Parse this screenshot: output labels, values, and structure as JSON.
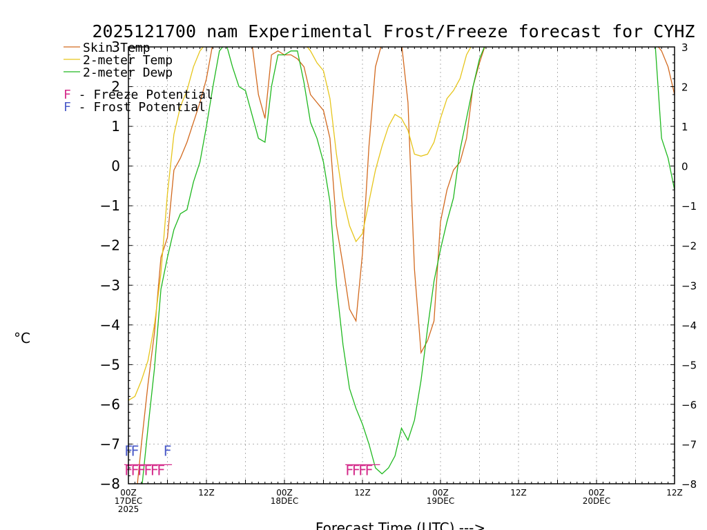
{
  "chart_data": {
    "type": "line",
    "title": "2025121700 nam Experimental Frost/Freeze forecast for CYHZ",
    "xlabel": "Forecast Time (UTC) --->",
    "ylabel": "°C",
    "ylim": [
      -8,
      3
    ],
    "xlim": [
      0,
      84
    ],
    "yticks": [
      -8,
      -7,
      -6,
      -5,
      -4,
      -3,
      -2,
      -1,
      0,
      1,
      2,
      3
    ],
    "xticks": [
      {
        "x": 0,
        "lines": [
          "00Z",
          "17DEC",
          "2025"
        ]
      },
      {
        "x": 12,
        "lines": [
          "12Z"
        ]
      },
      {
        "x": 24,
        "lines": [
          "00Z",
          "18DEC"
        ]
      },
      {
        "x": 36,
        "lines": [
          "12Z"
        ]
      },
      {
        "x": 48,
        "lines": [
          "00Z",
          "19DEC"
        ]
      },
      {
        "x": 60,
        "lines": [
          "12Z"
        ]
      },
      {
        "x": 72,
        "lines": [
          "00Z",
          "20DEC"
        ]
      },
      {
        "x": 84,
        "lines": [
          "12Z"
        ]
      }
    ],
    "grid": true,
    "series": [
      {
        "name": "Skin Temp",
        "color": "#d2691e",
        "points": [
          [
            1.2,
            -8.3
          ],
          [
            2,
            -7.0
          ],
          [
            3,
            -5.5
          ],
          [
            4,
            -4.2
          ],
          [
            5,
            -2.3
          ],
          [
            6,
            -1.8
          ],
          [
            7,
            -0.1
          ],
          [
            8,
            0.2
          ],
          [
            9,
            0.6
          ],
          [
            10,
            1.1
          ],
          [
            11,
            1.6
          ],
          [
            12,
            2.2
          ],
          [
            13,
            3.1
          ],
          [
            19,
            3.1
          ],
          [
            20,
            1.8
          ],
          [
            21,
            1.2
          ],
          [
            22,
            2.8
          ],
          [
            23,
            2.9
          ],
          [
            24,
            2.8
          ],
          [
            25,
            2.8
          ],
          [
            26,
            2.7
          ],
          [
            27,
            2.5
          ],
          [
            28,
            1.8
          ],
          [
            29,
            1.6
          ],
          [
            30,
            1.4
          ],
          [
            31,
            0.7
          ],
          [
            32,
            -1.5
          ],
          [
            33,
            -2.5
          ],
          [
            34,
            -3.6
          ],
          [
            35,
            -3.9
          ],
          [
            36,
            -2.2
          ],
          [
            37,
            0.5
          ],
          [
            38,
            2.5
          ],
          [
            39,
            3.1
          ],
          [
            42,
            3.1
          ],
          [
            43,
            1.6
          ],
          [
            44,
            -2.6
          ],
          [
            45,
            -4.7
          ],
          [
            46,
            -4.4
          ],
          [
            47,
            -3.9
          ],
          [
            48,
            -1.4
          ],
          [
            49,
            -0.6
          ],
          [
            50,
            -0.1
          ],
          [
            51,
            0.1
          ],
          [
            52,
            0.7
          ],
          [
            53,
            2.0
          ],
          [
            54,
            2.6
          ],
          [
            55,
            3.1
          ],
          [
            81,
            3.1
          ],
          [
            82,
            2.9
          ],
          [
            83,
            2.5
          ],
          [
            84,
            1.8
          ]
        ]
      },
      {
        "name": "2-meter Temp",
        "color": "#e6c51a",
        "points": [
          [
            0,
            -5.9
          ],
          [
            1,
            -5.8
          ],
          [
            2,
            -5.4
          ],
          [
            3,
            -4.9
          ],
          [
            4,
            -4.0
          ],
          [
            5,
            -2.7
          ],
          [
            6,
            -0.7
          ],
          [
            7,
            0.8
          ],
          [
            8,
            1.5
          ],
          [
            9,
            1.9
          ],
          [
            10,
            2.5
          ],
          [
            11,
            2.9
          ],
          [
            12,
            3.1
          ],
          [
            27,
            3.1
          ],
          [
            28,
            2.9
          ],
          [
            29,
            2.6
          ],
          [
            30,
            2.4
          ],
          [
            31,
            1.7
          ],
          [
            32,
            0.3
          ],
          [
            33,
            -0.8
          ],
          [
            34,
            -1.5
          ],
          [
            35,
            -1.9
          ],
          [
            36,
            -1.7
          ],
          [
            37,
            -0.9
          ],
          [
            38,
            -0.1
          ],
          [
            39,
            0.5
          ],
          [
            40,
            1.0
          ],
          [
            41,
            1.3
          ],
          [
            42,
            1.2
          ],
          [
            43,
            0.9
          ],
          [
            44,
            0.3
          ],
          [
            45,
            0.25
          ],
          [
            46,
            0.3
          ],
          [
            47,
            0.6
          ],
          [
            48,
            1.2
          ],
          [
            49,
            1.7
          ],
          [
            50,
            1.9
          ],
          [
            51,
            2.2
          ],
          [
            52,
            2.8
          ],
          [
            53,
            3.1
          ],
          [
            84,
            3.1
          ]
        ]
      },
      {
        "name": "2-meter Dewp",
        "color": "#1eb81e",
        "points": [
          [
            1.5,
            -8.3
          ],
          [
            2,
            -8.2
          ],
          [
            3,
            -6.6
          ],
          [
            4,
            -5.1
          ],
          [
            5,
            -3.1
          ],
          [
            6,
            -2.3
          ],
          [
            7,
            -1.6
          ],
          [
            8,
            -1.2
          ],
          [
            9,
            -1.1
          ],
          [
            10,
            -0.4
          ],
          [
            11,
            0.1
          ],
          [
            12,
            1.0
          ],
          [
            13,
            2.0
          ],
          [
            14,
            2.9
          ],
          [
            15,
            3.1
          ],
          [
            16,
            2.5
          ],
          [
            17,
            2.0
          ],
          [
            18,
            1.9
          ],
          [
            19,
            1.3
          ],
          [
            20,
            0.7
          ],
          [
            21,
            0.6
          ],
          [
            22,
            2.0
          ],
          [
            23,
            2.8
          ],
          [
            24,
            2.8
          ],
          [
            25,
            2.9
          ],
          [
            26,
            2.9
          ],
          [
            27,
            2.1
          ],
          [
            28,
            1.1
          ],
          [
            29,
            0.7
          ],
          [
            30,
            0.1
          ],
          [
            31,
            -0.9
          ],
          [
            32,
            -3.0
          ],
          [
            33,
            -4.5
          ],
          [
            34,
            -5.6
          ],
          [
            35,
            -6.1
          ],
          [
            36,
            -6.5
          ],
          [
            37,
            -7.0
          ],
          [
            38,
            -7.6
          ],
          [
            39,
            -7.75
          ],
          [
            40,
            -7.6
          ],
          [
            41,
            -7.3
          ],
          [
            42,
            -6.6
          ],
          [
            43,
            -6.9
          ],
          [
            44,
            -6.4
          ],
          [
            45,
            -5.4
          ],
          [
            46,
            -4.1
          ],
          [
            47,
            -2.9
          ],
          [
            48,
            -2.1
          ],
          [
            49,
            -1.4
          ],
          [
            50,
            -0.8
          ],
          [
            51,
            0.4
          ],
          [
            52,
            1.2
          ],
          [
            53,
            2.0
          ],
          [
            54,
            2.7
          ],
          [
            55,
            3.1
          ],
          [
            81,
            3.1
          ],
          [
            82,
            0.7
          ],
          [
            83,
            0.2
          ],
          [
            84,
            -0.6
          ]
        ]
      }
    ],
    "freeze_markers": {
      "color": "#d42a8a",
      "x": [
        0,
        1,
        2,
        3,
        4,
        5,
        34,
        35,
        36,
        37
      ]
    },
    "frost_markers": {
      "color": "#4a5ac8",
      "x": [
        0,
        1,
        6
      ]
    },
    "legend": {
      "placement": "top-left",
      "entries": [
        {
          "label": "Skin Temp",
          "color": "#d2691e"
        },
        {
          "label": "2-meter Temp",
          "color": "#e6c51a"
        },
        {
          "label": "2-meter Dewp",
          "color": "#1eb81e"
        }
      ],
      "potentials": [
        {
          "letter": "F",
          "text": " - Freeze Potential",
          "color": "#d42a8a"
        },
        {
          "letter": "F",
          "text": " - Frost Potential",
          "color": "#4a5ac8"
        }
      ]
    }
  }
}
